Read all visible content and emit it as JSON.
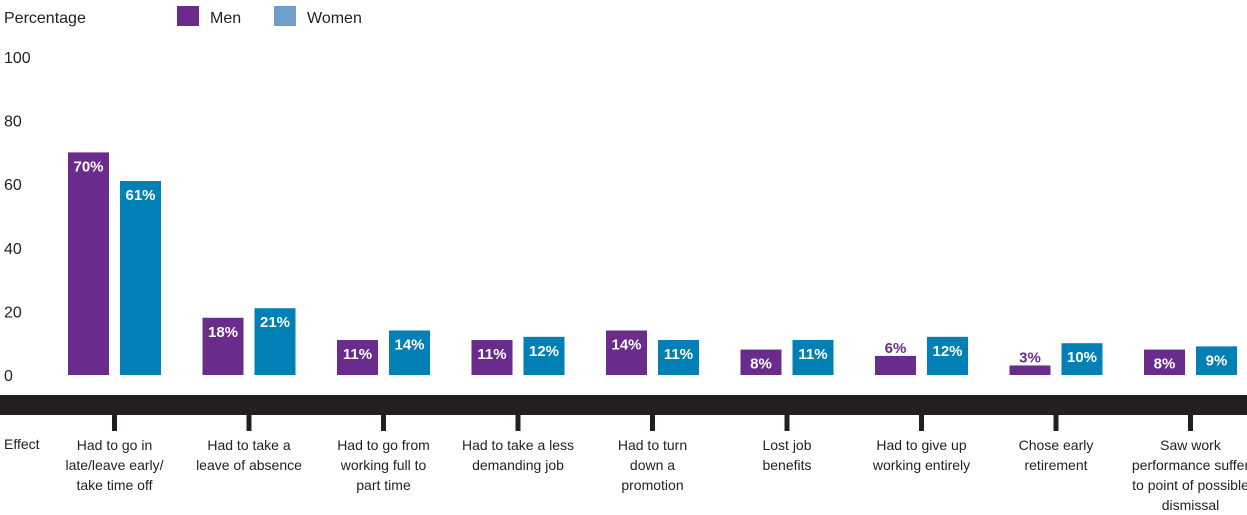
{
  "chart_data": {
    "type": "bar",
    "ylabel": "Percentage",
    "xlabel": "Effect",
    "ylim": [
      0,
      100
    ],
    "yticks": [
      0,
      20,
      40,
      60,
      80,
      100
    ],
    "legend_position": "top-left",
    "grid": false,
    "categories": [
      [
        "Had to go in",
        "late/leave early/",
        "take time off"
      ],
      [
        "Had to take a",
        "leave of absence"
      ],
      [
        "Had to go from",
        "working full to",
        "part time"
      ],
      [
        "Had to take a less",
        "demanding job"
      ],
      [
        "Had to turn",
        "down a",
        "promotion"
      ],
      [
        "Lost job",
        "benefits"
      ],
      [
        "Had to give up",
        "working entirely"
      ],
      [
        "Chose early",
        "retirement"
      ],
      [
        "Saw work",
        "performance suffer",
        "to point of possible",
        "dismissal"
      ]
    ],
    "series": [
      {
        "name": "Men",
        "color": "#692c8c",
        "values": [
          70,
          18,
          11,
          11,
          14,
          8,
          6,
          3,
          8
        ],
        "labels": [
          "70%",
          "18%",
          "11%",
          "11%",
          "14%",
          "8%",
          "6%",
          "3%",
          "8%"
        ]
      },
      {
        "name": "Women",
        "color": "#0080b5",
        "values": [
          61,
          21,
          14,
          12,
          11,
          11,
          12,
          10,
          9
        ],
        "labels": [
          "61%",
          "21%",
          "14%",
          "12%",
          "11%",
          "11%",
          "12%",
          "10%",
          "9%"
        ]
      }
    ],
    "legend_colors": {
      "Men": "#692c8c",
      "Women": "#6f9dcc"
    },
    "axis_band_color": "#231f20"
  }
}
